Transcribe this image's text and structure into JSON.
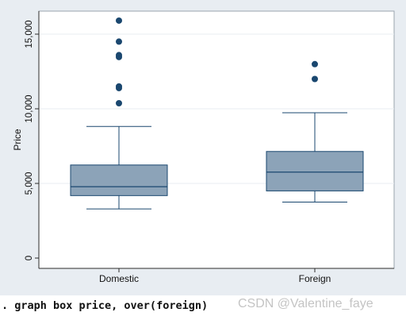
{
  "chart_data": {
    "type": "box",
    "ylabel": "Price",
    "ylim": [
      0,
      16000
    ],
    "yticks": [
      0,
      5000,
      10000,
      15000
    ],
    "ytick_labels": [
      "0",
      "5,000",
      "10,000",
      "15,000"
    ],
    "grid": true,
    "box_color": "#8ca3b8",
    "line_color": "#1a476f",
    "groups": [
      {
        "category": "Domestic",
        "whisker_low": 3291,
        "q1": 4184,
        "median": 4782,
        "q3": 6234,
        "whisker_high": 8814,
        "outliers": [
          10372,
          11385,
          11497,
          13466,
          13594,
          14500,
          15906
        ]
      },
      {
        "category": "Foreign",
        "whisker_low": 3748,
        "q1": 4499,
        "median": 5759,
        "q3": 7140,
        "whisker_high": 9735,
        "outliers": [
          11995,
          12990
        ]
      }
    ]
  },
  "caption": {
    "command": ". graph box price, over(foreign)",
    "watermark": "CSDN @Valentine_faye"
  }
}
